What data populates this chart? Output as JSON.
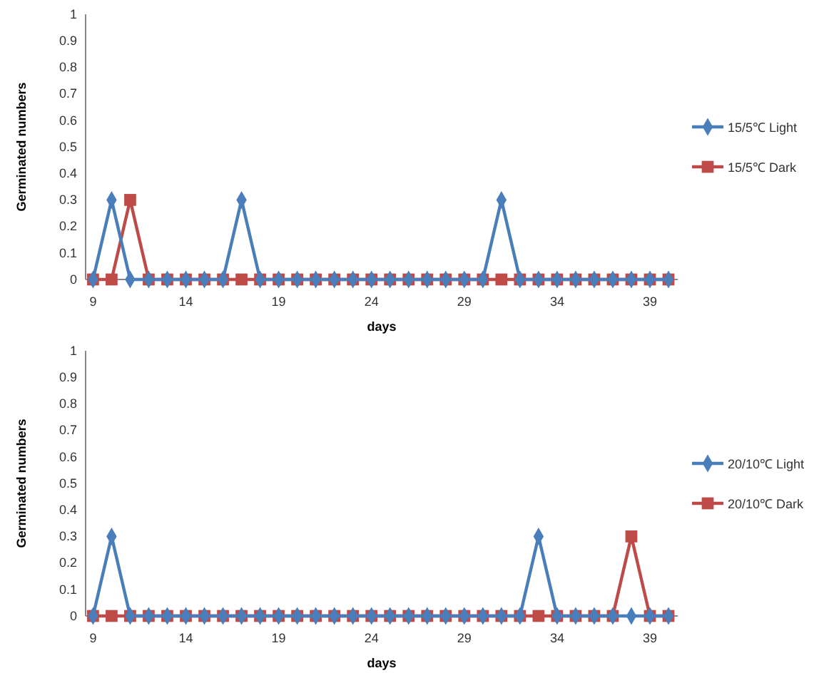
{
  "chart_data": [
    {
      "type": "line",
      "xlabel": "days",
      "ylabel": "Germinated numbers",
      "x": [
        9,
        10,
        11,
        12,
        13,
        14,
        15,
        16,
        17,
        18,
        19,
        20,
        21,
        22,
        23,
        24,
        25,
        26,
        27,
        28,
        29,
        30,
        31,
        32,
        33,
        34,
        35,
        36,
        37,
        38,
        39,
        40
      ],
      "xlim": [
        8.6,
        40.5
      ],
      "xticks": [
        9,
        14,
        19,
        24,
        29,
        34,
        39
      ],
      "ylim": [
        0,
        1
      ],
      "yticks": [
        0,
        0.1,
        0.2,
        0.3,
        0.4,
        0.5,
        0.6,
        0.7,
        0.8,
        0.9,
        1
      ],
      "grid": false,
      "legend": "right",
      "series": [
        {
          "name": "15/5℃ Light",
          "color": "#4a7ebb",
          "marker": "diamond",
          "values": [
            0,
            0.3,
            0,
            0,
            0,
            0,
            0,
            0,
            0.3,
            0,
            0,
            0,
            0,
            0,
            0,
            0,
            0,
            0,
            0,
            0,
            0,
            0,
            0.3,
            0,
            0,
            0,
            0,
            0,
            0,
            0,
            0,
            0
          ]
        },
        {
          "name": "15/5℃ Dark",
          "color": "#be4b48",
          "marker": "square",
          "values": [
            0,
            0,
            0.3,
            0,
            0,
            0,
            0,
            0,
            0,
            0,
            0,
            0,
            0,
            0,
            0,
            0,
            0,
            0,
            0,
            0,
            0,
            0,
            0,
            0,
            0,
            0,
            0,
            0,
            0,
            0,
            0,
            0
          ]
        }
      ]
    },
    {
      "type": "line",
      "xlabel": "days",
      "ylabel": "Germinated numbers",
      "x": [
        9,
        10,
        11,
        12,
        13,
        14,
        15,
        16,
        17,
        18,
        19,
        20,
        21,
        22,
        23,
        24,
        25,
        26,
        27,
        28,
        29,
        30,
        31,
        32,
        33,
        34,
        35,
        36,
        37,
        38,
        39,
        40
      ],
      "xlim": [
        8.6,
        40.5
      ],
      "xticks": [
        9,
        14,
        19,
        24,
        29,
        34,
        39
      ],
      "ylim": [
        0,
        1
      ],
      "yticks": [
        0,
        0.1,
        0.2,
        0.3,
        0.4,
        0.5,
        0.6,
        0.7,
        0.8,
        0.9,
        1
      ],
      "grid": false,
      "legend": "right",
      "series": [
        {
          "name": "20/10℃ Light",
          "color": "#4a7ebb",
          "marker": "diamond",
          "values": [
            0,
            0.3,
            0,
            0,
            0,
            0,
            0,
            0,
            0,
            0,
            0,
            0,
            0,
            0,
            0,
            0,
            0,
            0,
            0,
            0,
            0,
            0,
            0,
            0,
            0.3,
            0,
            0,
            0,
            0,
            0,
            0,
            0
          ]
        },
        {
          "name": "20/10℃ Dark",
          "color": "#be4b48",
          "marker": "square",
          "values": [
            0,
            0,
            0,
            0,
            0,
            0,
            0,
            0,
            0,
            0,
            0,
            0,
            0,
            0,
            0,
            0,
            0,
            0,
            0,
            0,
            0,
            0,
            0,
            0,
            0,
            0,
            0,
            0,
            0,
            0.3,
            0,
            0
          ]
        }
      ]
    }
  ]
}
